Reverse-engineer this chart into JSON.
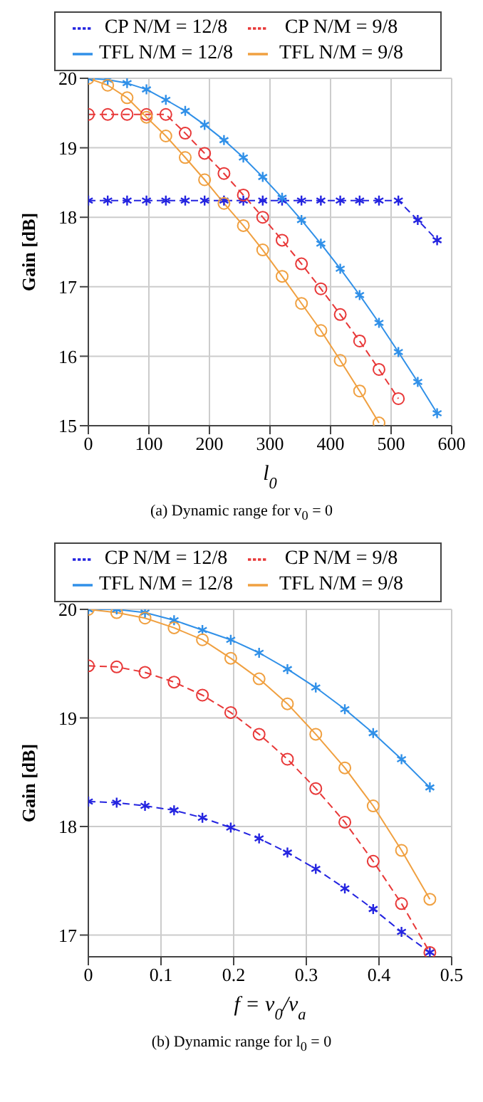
{
  "chart_data": [
    {
      "type": "line",
      "xlabel": "l$_{0}$",
      "ylabel": "Gain [dB]",
      "annotations": [
        "(a) Dynamic range for v$_{0}$ = 0"
      ],
      "xlim": [
        0,
        600
      ],
      "xticks": [
        0,
        100,
        200,
        300,
        400,
        500,
        600
      ],
      "ylim": [
        15,
        20
      ],
      "yticks": [
        15,
        16,
        17,
        18,
        19,
        20
      ],
      "grid": true,
      "legend": "top",
      "x": [
        0,
        32,
        64,
        96,
        128,
        160,
        192,
        224,
        256,
        288,
        320,
        352,
        384,
        416,
        448,
        480,
        512,
        544,
        576
      ],
      "series": [
        {
          "name": "CP N/M = 12/8",
          "color": "#2424e0",
          "marker": "cross",
          "line_style": "dashed",
          "values": [
            18.24,
            18.24,
            18.24,
            18.24,
            18.24,
            18.24,
            18.24,
            18.24,
            18.24,
            18.24,
            18.24,
            18.24,
            18.24,
            18.24,
            18.24,
            18.24,
            18.24,
            17.96,
            17.67
          ]
        },
        {
          "name": "TFL N/M = 12/8",
          "color": "#3090e8",
          "marker": "cross",
          "line_style": "solid",
          "values": [
            20,
            19.98,
            19.93,
            19.84,
            19.69,
            19.53,
            19.33,
            19.11,
            18.86,
            18.58,
            18.28,
            17.96,
            17.62,
            17.26,
            16.88,
            16.48,
            16.06,
            15.63,
            15.18
          ]
        },
        {
          "name": "CP N/M = 9/8",
          "color": "#e83838",
          "marker": "circle",
          "line_style": "dashed",
          "values": [
            19.48,
            19.48,
            19.48,
            19.48,
            19.48,
            19.21,
            18.92,
            18.63,
            18.32,
            18.0,
            17.67,
            17.33,
            16.97,
            16.6,
            16.22,
            15.81,
            15.39,
            null,
            null
          ]
        },
        {
          "name": "TFL N/M = 9/8",
          "color": "#f0a040",
          "marker": "circle",
          "line_style": "solid",
          "values": [
            20,
            19.9,
            19.72,
            19.44,
            19.17,
            18.86,
            18.54,
            18.2,
            17.88,
            17.53,
            17.15,
            16.76,
            16.37,
            15.94,
            15.5,
            15.04,
            null,
            null,
            null
          ]
        }
      ]
    },
    {
      "type": "line",
      "xlabel": "f = v$_{0}$/v$_{a}$",
      "ylabel": "Gain [dB]",
      "annotations": [
        "(b) Dynamic range for l$_{0}$ = 0"
      ],
      "xlim": [
        0,
        0.5
      ],
      "xticks": [
        0,
        0.1,
        0.2,
        0.3,
        0.4,
        0.5
      ],
      "ylim": [
        16.8,
        20
      ],
      "yticks": [
        17,
        18,
        19,
        20
      ],
      "grid": true,
      "legend": "top",
      "x": [
        0,
        0.039,
        0.078,
        0.118,
        0.157,
        0.196,
        0.235,
        0.274,
        0.313,
        0.353,
        0.392,
        0.431,
        0.47
      ],
      "series": [
        {
          "name": "CP N/M = 12/8",
          "color": "#2424e0",
          "marker": "cross",
          "line_style": "dashed",
          "values": [
            18.23,
            18.22,
            18.19,
            18.15,
            18.08,
            17.99,
            17.89,
            17.76,
            17.61,
            17.43,
            17.24,
            17.03,
            16.84
          ]
        },
        {
          "name": "TFL N/M = 12/8",
          "color": "#3090e8",
          "marker": "cross",
          "line_style": "solid",
          "values": [
            20,
            20,
            19.97,
            19.9,
            19.81,
            19.72,
            19.6,
            19.45,
            19.28,
            19.08,
            18.86,
            18.62,
            18.36
          ]
        },
        {
          "name": "CP N/M = 9/8",
          "color": "#e83838",
          "marker": "circle",
          "line_style": "dashed",
          "values": [
            19.48,
            19.47,
            19.42,
            19.33,
            19.21,
            19.05,
            18.85,
            18.62,
            18.35,
            18.04,
            17.68,
            17.29,
            16.84
          ]
        },
        {
          "name": "TFL N/M = 9/8",
          "color": "#f0a040",
          "marker": "circle",
          "line_style": "solid",
          "values": [
            20,
            19.97,
            19.92,
            19.83,
            19.72,
            19.55,
            19.36,
            19.13,
            18.85,
            18.54,
            18.19,
            17.78,
            17.33
          ]
        }
      ]
    }
  ]
}
